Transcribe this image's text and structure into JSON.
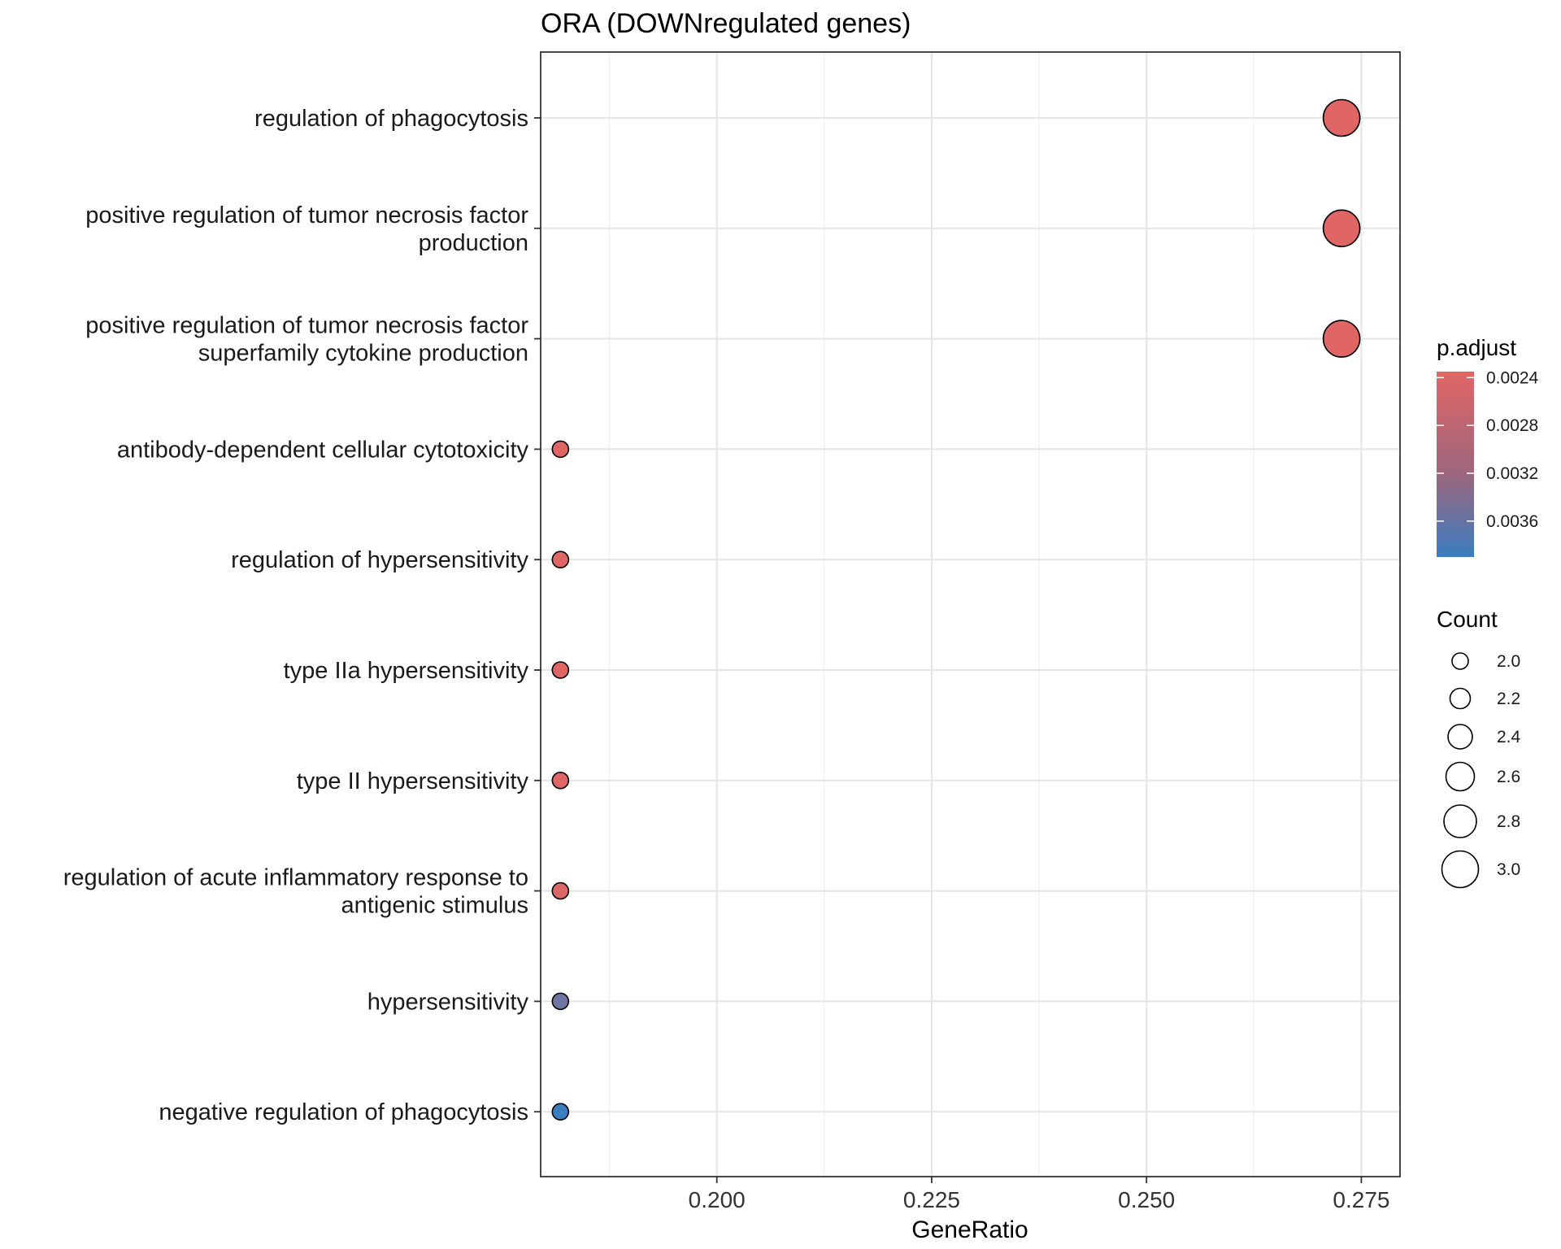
{
  "chart_data": {
    "type": "scatter",
    "title": "ORA (DOWNregulated genes)",
    "xlabel": "GeneRatio",
    "ylabel": "",
    "xlim": [
      0.1795,
      0.2795
    ],
    "xticks": [
      "0.200",
      "0.225",
      "0.250",
      "0.275"
    ],
    "xtick_values": [
      0.2,
      0.225,
      0.25,
      0.275
    ],
    "grid": true,
    "categories": [
      {
        "lines": [
          "regulation of phagocytosis"
        ],
        "x": 0.2727,
        "count": 3,
        "p_adjust": 0.00235
      },
      {
        "lines": [
          "positive regulation of tumor necrosis factor",
          "production"
        ],
        "x": 0.2727,
        "count": 3,
        "p_adjust": 0.00235
      },
      {
        "lines": [
          "positive regulation of tumor necrosis factor",
          "superfamily cytokine production"
        ],
        "x": 0.2727,
        "count": 3,
        "p_adjust": 0.00235
      },
      {
        "lines": [
          "antibody-dependent cellular cytotoxicity"
        ],
        "x": 0.1818,
        "count": 2,
        "p_adjust": 0.00235
      },
      {
        "lines": [
          "regulation of hypersensitivity"
        ],
        "x": 0.1818,
        "count": 2,
        "p_adjust": 0.00235
      },
      {
        "lines": [
          "type IIa hypersensitivity"
        ],
        "x": 0.1818,
        "count": 2,
        "p_adjust": 0.00235
      },
      {
        "lines": [
          "type II hypersensitivity"
        ],
        "x": 0.1818,
        "count": 2,
        "p_adjust": 0.00235
      },
      {
        "lines": [
          "regulation of acute inflammatory response to",
          "antigenic stimulus"
        ],
        "x": 0.1818,
        "count": 2,
        "p_adjust": 0.0024
      },
      {
        "lines": [
          "hypersensitivity"
        ],
        "x": 0.1818,
        "count": 2,
        "p_adjust": 0.0034
      },
      {
        "lines": [
          "negative regulation of phagocytosis"
        ],
        "x": 0.1818,
        "count": 2,
        "p_adjust": 0.0039
      }
    ],
    "color_legend": {
      "title": "p.adjust",
      "range": [
        0.00235,
        0.0039
      ],
      "ticks": [
        0.0024,
        0.0028,
        0.0032,
        0.0036
      ],
      "tick_labels": [
        "0.0024",
        "0.0028",
        "0.0032",
        "0.0036"
      ],
      "low_color": "#E06666",
      "high_color": "#3A7DC0"
    },
    "size_legend": {
      "title": "Count",
      "values": [
        2.0,
        2.2,
        2.4,
        2.6,
        2.8,
        3.0
      ],
      "labels": [
        "2.0",
        "2.2",
        "2.4",
        "2.6",
        "2.8",
        "3.0"
      ]
    }
  }
}
